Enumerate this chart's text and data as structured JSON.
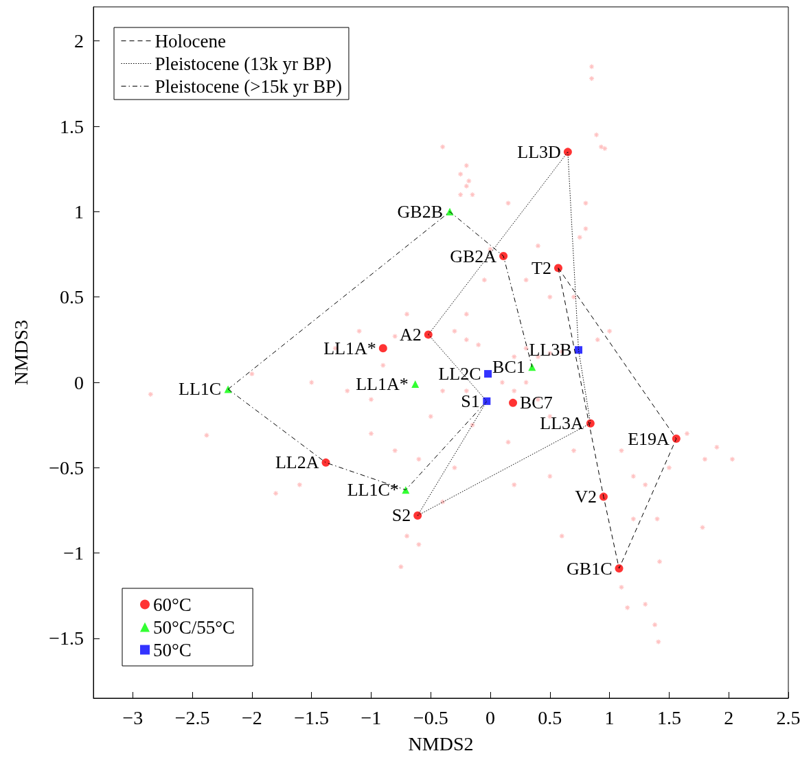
{
  "chart_data": {
    "type": "scatter",
    "xlabel": "NMDS2",
    "ylabel": "NMDS3",
    "xlim": [
      -3.33,
      2.5
    ],
    "ylim": [
      -1.85,
      2.2
    ],
    "xticks": [
      -3,
      -2.5,
      -2,
      -1.5,
      -1,
      -0.5,
      0,
      0.5,
      1,
      1.5,
      2,
      2.5
    ],
    "yticks": [
      -1.5,
      -1,
      -0.5,
      0,
      0.5,
      1,
      1.5,
      2
    ],
    "grid": false,
    "legend": "left",
    "series": [
      {
        "type": "scatter",
        "color": "#ffb3b3",
        "marker": "cross",
        "x": [
          0.85,
          0.85,
          0.89,
          0.93,
          0.96,
          -0.4,
          -0.2,
          -0.25,
          -0.18,
          -0.2,
          -0.15,
          -0.25,
          0.15,
          0.8,
          0.8,
          0.75,
          0.4,
          0.0,
          -0.05,
          0.3,
          0.5,
          -0.2,
          -0.7,
          -0.8,
          -0.3,
          -0.2,
          -0.1,
          0.2,
          0.3,
          0.4,
          0.5,
          0.6,
          0.1,
          0.2,
          0.3,
          0.4,
          0.5,
          -0.2,
          -0.4,
          -0.5,
          -1.0,
          -1.2,
          -1.3,
          -1.5,
          -2.0,
          -2.85,
          -2.38,
          -1.8,
          -1.6,
          -1.0,
          -0.8,
          -0.6,
          -0.3,
          -0.4,
          -0.7,
          -0.75,
          -0.6,
          0.2,
          0.5,
          0.7,
          1.1,
          1.2,
          1.3,
          1.4,
          1.5,
          1.8,
          2.03,
          1.9,
          1.78,
          1.65,
          1.2,
          1.1,
          1.15,
          1.3,
          1.38,
          1.41,
          1.42,
          0.6,
          1.0,
          0.9,
          0.7,
          -0.9,
          -1.1,
          0.15,
          -0.15
        ],
        "values": [
          1.85,
          1.78,
          1.45,
          1.38,
          1.37,
          1.38,
          1.27,
          1.22,
          1.18,
          1.15,
          1.1,
          1.1,
          1.05,
          1.05,
          0.9,
          0.85,
          0.8,
          0.78,
          0.6,
          0.6,
          0.5,
          0.4,
          0.4,
          0.27,
          0.3,
          0.25,
          0.22,
          0.15,
          0.2,
          0.15,
          0.17,
          0.18,
          0.0,
          -0.05,
          0.0,
          -0.1,
          -0.2,
          -0.05,
          -0.05,
          -0.2,
          -0.1,
          -0.05,
          0.2,
          0.0,
          0.05,
          -0.07,
          -0.31,
          -0.65,
          -0.6,
          -0.3,
          -0.4,
          -0.45,
          -0.5,
          -0.7,
          -0.9,
          -1.08,
          -0.95,
          -0.6,
          -0.55,
          -0.4,
          -0.4,
          -0.55,
          -0.6,
          -0.8,
          -0.5,
          -0.45,
          -0.45,
          -0.38,
          -0.85,
          -0.3,
          -0.8,
          -1.2,
          -1.32,
          -1.3,
          -1.42,
          -1.52,
          -1.05,
          -0.9,
          0.3,
          0.25,
          0.5,
          0.1,
          0.3,
          -0.35,
          -0.25
        ]
      },
      {
        "type": "line",
        "name": "Holocene",
        "color": "#000000",
        "marker": "none",
        "line_style": "dashed",
        "x": [
          0.57,
          1.56,
          null,
          0.57,
          0.95,
          1.08,
          1.56
        ],
        "values": [
          0.67,
          -0.33,
          null,
          0.67,
          -0.67,
          -1.09,
          -0.33
        ]
      },
      {
        "type": "line",
        "name": "Pleistocene (13k yr BP)",
        "color": "#000000",
        "marker": "none",
        "line_style": "dotted",
        "x": [
          -0.52,
          0.65,
          null,
          -0.52,
          -0.03,
          null,
          -0.61,
          -0.03,
          null,
          -0.61,
          0.84,
          null,
          0.65,
          0.74,
          0.84
        ],
        "values": [
          0.28,
          1.35,
          null,
          0.28,
          -0.11,
          null,
          -0.78,
          -0.11,
          null,
          -0.78,
          -0.24,
          null,
          1.35,
          0.19,
          -0.24
        ]
      },
      {
        "type": "line",
        "name": "Pleistocene (>15k yr BP)",
        "color": "#000000",
        "marker": "none",
        "line_style": "dashdot",
        "x": [
          -2.2,
          -0.34,
          0.11,
          0.35,
          null,
          -2.2,
          -1.38,
          -0.71,
          -0.03
        ],
        "values": [
          -0.04,
          1.0,
          0.74,
          0.09,
          null,
          -0.04,
          -0.47,
          -0.63,
          -0.11
        ]
      },
      {
        "type": "scatter",
        "name": "60°C",
        "color": "#ff0000",
        "marker": "circle",
        "x": [
          0.65,
          0.11,
          0.57,
          -0.52,
          -0.9,
          0.19,
          0.84,
          1.56,
          -1.38,
          0.95,
          -0.61,
          1.08
        ],
        "values": [
          1.35,
          0.74,
          0.67,
          0.28,
          0.2,
          -0.12,
          -0.24,
          -0.33,
          -0.47,
          -0.67,
          -0.78,
          -1.09
        ]
      },
      {
        "type": "scatter",
        "name": "50°C/55°C",
        "color": "#00ff00",
        "marker": "triangle",
        "x": [
          -0.34,
          0.35,
          -0.63,
          -2.2,
          -0.71
        ],
        "values": [
          1.0,
          0.09,
          -0.01,
          -0.04,
          -0.63
        ]
      },
      {
        "type": "scatter",
        "name": "50°C",
        "color": "#0000ff",
        "marker": "square",
        "x": [
          -0.02,
          -0.03,
          0.74
        ],
        "values": [
          0.05,
          -0.11,
          0.19
        ]
      }
    ],
    "annotations": [
      {
        "text": "LL3D",
        "x": 0.65,
        "y": 1.35
      },
      {
        "text": "GB2A",
        "x": 0.11,
        "y": 0.74
      },
      {
        "text": "T2",
        "x": 0.57,
        "y": 0.67
      },
      {
        "text": "A2",
        "x": -0.52,
        "y": 0.28
      },
      {
        "text": "LL1A*",
        "x": -0.9,
        "y": 0.2
      },
      {
        "text": "BC7",
        "x": 0.19,
        "y": -0.12
      },
      {
        "text": "LL3A",
        "x": 0.84,
        "y": -0.24
      },
      {
        "text": "E19A",
        "x": 1.56,
        "y": -0.33
      },
      {
        "text": "LL2A",
        "x": -1.38,
        "y": -0.47
      },
      {
        "text": "V2",
        "x": 0.95,
        "y": -0.67
      },
      {
        "text": "S2",
        "x": -0.61,
        "y": -0.78
      },
      {
        "text": "GB1C",
        "x": 1.08,
        "y": -1.09
      },
      {
        "text": "GB2B",
        "x": -0.34,
        "y": 1.0
      },
      {
        "text": "BC1",
        "x": 0.35,
        "y": 0.09
      },
      {
        "text": "LL1A*",
        "x": -0.63,
        "y": -0.01
      },
      {
        "text": "LL1C",
        "x": -2.2,
        "y": -0.04
      },
      {
        "text": "LL1C*",
        "x": -0.71,
        "y": -0.63
      },
      {
        "text": "LL2C",
        "x": -0.02,
        "y": 0.05
      },
      {
        "text": "S1",
        "x": -0.03,
        "y": -0.11
      },
      {
        "text": "LL3B",
        "x": 0.74,
        "y": 0.19
      }
    ]
  }
}
